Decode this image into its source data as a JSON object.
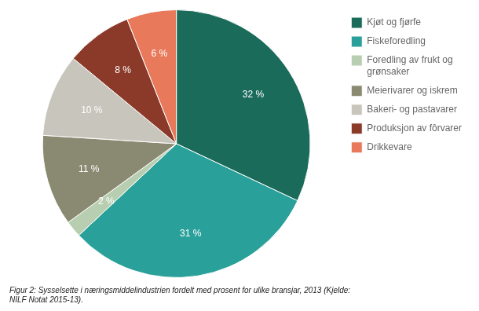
{
  "chart_data": {
    "type": "pie",
    "title": "Figur 2: Sysselsette i næringsmiddelindustrien fordelt med prosent for ulike bransjar, 2013 (Kjelde:\nNILF Notat 2015-13).",
    "categories": [
      "Kjøt og fjørfe",
      "Fiskeforedling",
      "Foredling av frukt og\ngrønsaker",
      "Meierivarer og iskrem",
      "Bakeri- og pastavarer",
      "Produksjon av fôrvarer",
      "Drikkevare"
    ],
    "values": [
      32,
      31,
      2,
      11,
      10,
      8,
      6
    ],
    "value_labels": [
      "32 %",
      "31 %",
      "2 %",
      "11 %",
      "10 %",
      "8 %",
      "6 %"
    ],
    "colors": [
      "#1a6b5a",
      "#2aA09A",
      "#b8ceb0",
      "#8a8a72",
      "#c8c5bc",
      "#8b3a2a",
      "#e8795a"
    ],
    "data_labels": true,
    "legend": "right"
  }
}
